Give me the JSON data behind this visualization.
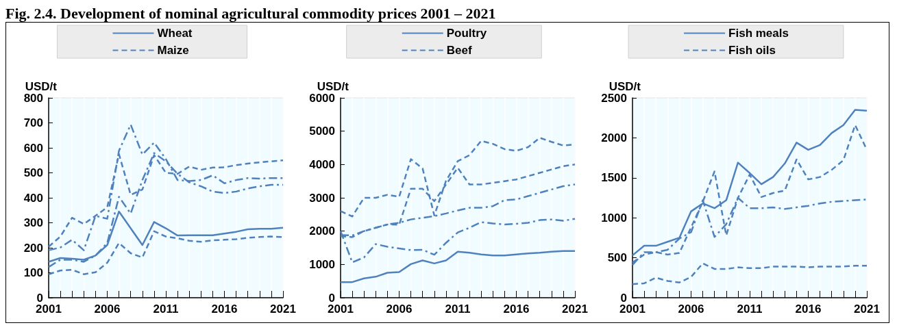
{
  "chart_data": [
    {
      "type": "line",
      "title": "Fig. 2.4. Development of nominal agricultural commodity prices 2001 – 2021",
      "ylabel": "USD/t",
      "x": [
        2001,
        2002,
        2003,
        2004,
        2005,
        2006,
        2007,
        2008,
        2009,
        2010,
        2011,
        2012,
        2013,
        2014,
        2015,
        2016,
        2017,
        2018,
        2019,
        2020,
        2021
      ],
      "xlim": [
        2001,
        2021
      ],
      "xticks": [
        2001,
        {
          "value": 2002,
          "label": null
        },
        {
          "value": 2003,
          "label": null
        },
        {
          "value": 2004,
          "label": null
        },
        {
          "value": 2005,
          "label": null
        },
        2006,
        {
          "value": 2007,
          "label": null
        },
        {
          "value": 2008,
          "label": null
        },
        {
          "value": 2009,
          "label": null
        },
        {
          "value": 2010,
          "label": null
        },
        2011,
        {
          "value": 2012,
          "label": null
        },
        {
          "value": 2013,
          "label": null
        },
        {
          "value": 2014,
          "label": null
        },
        {
          "value": 2015,
          "label": null
        },
        2016,
        {
          "value": 2017,
          "label": null
        },
        {
          "value": 2018,
          "label": null
        },
        {
          "value": 2019,
          "label": null
        },
        {
          "value": 2020,
          "label": null
        },
        2021
      ],
      "ylim": [
        0,
        800
      ],
      "yticks": [
        0,
        100,
        200,
        300,
        400,
        500,
        600,
        700,
        800
      ],
      "grid": "x",
      "legend": "top",
      "series": [
        {
          "name": "Wheat",
          "color": "#4f81bd",
          "line_style": "solid",
          "values": [
            144,
            159,
            156,
            152,
            169,
            211,
            345,
            278,
            211,
            303,
            278,
            249,
            250,
            250,
            250,
            257,
            264,
            274,
            276,
            276,
            280
          ]
        },
        {
          "name": "Maize",
          "color": "#4f81bd",
          "line_style": "dashed",
          "values": [
            94,
            109,
            112,
            94,
            102,
            140,
            219,
            178,
            161,
            266,
            245,
            238,
            228,
            224,
            230,
            232,
            234,
            240,
            243,
            245,
            243
          ]
        },
        {
          "color": "#4f81bd",
          "line_style": "dashed",
          "values": [
            204,
            245,
            320,
            295,
            328,
            362,
            575,
            412,
            433,
            571,
            500,
            496,
            525,
            512,
            521,
            522,
            531,
            537,
            542,
            546,
            550
          ]
        },
        {
          "color": "#4f81bd",
          "line_style": "dashdot",
          "values": [
            190,
            201,
            232,
            190,
            328,
            316,
            588,
            693,
            573,
            621,
            555,
            471,
            467,
            471,
            490,
            458,
            471,
            479,
            477,
            479,
            479
          ]
        },
        {
          "color": "#4f81bd",
          "line_style": "dashdot",
          "values": [
            123,
            152,
            152,
            144,
            169,
            219,
            404,
            337,
            471,
            579,
            546,
            496,
            462,
            446,
            425,
            419,
            425,
            437,
            446,
            452,
            452
          ]
        }
      ]
    },
    {
      "type": "line",
      "ylabel": "USD/t",
      "x": [
        2001,
        2002,
        2003,
        2004,
        2005,
        2006,
        2007,
        2008,
        2009,
        2010,
        2011,
        2012,
        2013,
        2014,
        2015,
        2016,
        2017,
        2018,
        2019,
        2020,
        2021
      ],
      "xlim": [
        2001,
        2021
      ],
      "xticks": [
        2001,
        {
          "value": 2002,
          "label": null
        },
        {
          "value": 2003,
          "label": null
        },
        {
          "value": 2004,
          "label": null
        },
        {
          "value": 2005,
          "label": null
        },
        2006,
        {
          "value": 2007,
          "label": null
        },
        {
          "value": 2008,
          "label": null
        },
        {
          "value": 2009,
          "label": null
        },
        {
          "value": 2010,
          "label": null
        },
        2011,
        {
          "value": 2012,
          "label": null
        },
        {
          "value": 2013,
          "label": null
        },
        {
          "value": 2014,
          "label": null
        },
        {
          "value": 2015,
          "label": null
        },
        2016,
        {
          "value": 2017,
          "label": null
        },
        {
          "value": 2018,
          "label": null
        },
        {
          "value": 2019,
          "label": null
        },
        {
          "value": 2020,
          "label": null
        },
        2021
      ],
      "ylim": [
        0,
        6000
      ],
      "yticks": [
        0,
        1000,
        2000,
        3000,
        4000,
        5000,
        6000
      ],
      "grid": "x",
      "legend": "top",
      "series": [
        {
          "name": "Poultry",
          "color": "#4f81bd",
          "line_style": "solid",
          "values": [
            470,
            470,
            580,
            630,
            750,
            770,
            1010,
            1120,
            1030,
            1120,
            1380,
            1350,
            1300,
            1270,
            1270,
            1300,
            1330,
            1350,
            1380,
            1400,
            1400
          ]
        },
        {
          "name": "Beef",
          "color": "#4f81bd",
          "line_style": "dashed",
          "values": [
            2600,
            2440,
            3000,
            3000,
            3090,
            3030,
            4160,
            3880,
            2470,
            3510,
            4100,
            4280,
            4710,
            4620,
            4460,
            4410,
            4520,
            4800,
            4680,
            4570,
            4600
          ]
        },
        {
          "color": "#4f81bd",
          "line_style": "dashed",
          "values": [
            1850,
            1820,
            2000,
            2100,
            2200,
            2190,
            3270,
            3270,
            2900,
            3400,
            3900,
            3400,
            3400,
            3450,
            3500,
            3550,
            3650,
            3750,
            3850,
            3950,
            4000
          ]
        },
        {
          "color": "#4f81bd",
          "line_style": "dashdot",
          "values": [
            2000,
            1060,
            1210,
            1610,
            1530,
            1480,
            1430,
            1440,
            1290,
            1650,
            1960,
            2100,
            2270,
            2230,
            2200,
            2220,
            2250,
            2330,
            2350,
            2310,
            2370
          ]
        },
        {
          "color": "#4f81bd",
          "line_style": "dashdot",
          "values": [
            1880,
            1870,
            2000,
            2100,
            2200,
            2250,
            2350,
            2400,
            2450,
            2530,
            2620,
            2700,
            2700,
            2750,
            2930,
            2950,
            3050,
            3150,
            3250,
            3350,
            3400
          ]
        }
      ]
    },
    {
      "type": "line",
      "ylabel": "USD/t",
      "x": [
        2001,
        2002,
        2003,
        2004,
        2005,
        2006,
        2007,
        2008,
        2009,
        2010,
        2011,
        2012,
        2013,
        2014,
        2015,
        2016,
        2017,
        2018,
        2019,
        2020,
        2021
      ],
      "xlim": [
        2001,
        2021
      ],
      "xticks": [
        2001,
        {
          "value": 2002,
          "label": null
        },
        {
          "value": 2003,
          "label": null
        },
        {
          "value": 2004,
          "label": null
        },
        {
          "value": 2005,
          "label": null
        },
        2006,
        {
          "value": 2007,
          "label": null
        },
        {
          "value": 2008,
          "label": null
        },
        {
          "value": 2009,
          "label": null
        },
        {
          "value": 2010,
          "label": null
        },
        2011,
        {
          "value": 2012,
          "label": null
        },
        {
          "value": 2013,
          "label": null
        },
        {
          "value": 2014,
          "label": null
        },
        {
          "value": 2015,
          "label": null
        },
        2016,
        {
          "value": 2017,
          "label": null
        },
        {
          "value": 2018,
          "label": null
        },
        {
          "value": 2019,
          "label": null
        },
        {
          "value": 2020,
          "label": null
        },
        2021
      ],
      "ylim": [
        0,
        2500
      ],
      "yticks": [
        0,
        500,
        1000,
        1500,
        2000,
        2500
      ],
      "grid": "x",
      "legend": "top",
      "series": [
        {
          "name": "Fish meals",
          "color": "#4f81bd",
          "line_style": "solid",
          "values": [
            530,
            650,
            650,
            700,
            750,
            1080,
            1180,
            1120,
            1220,
            1690,
            1560,
            1420,
            1510,
            1680,
            1940,
            1850,
            1910,
            2060,
            2160,
            2350,
            2340
          ]
        },
        {
          "name": "Fish oils",
          "color": "#4f81bd",
          "line_style": "dashed",
          "values": [
            170,
            180,
            250,
            210,
            190,
            260,
            430,
            360,
            360,
            380,
            370,
            370,
            390,
            390,
            390,
            380,
            390,
            390,
            390,
            400,
            400
          ]
        },
        {
          "color": "#4f81bd",
          "line_style": "dashed",
          "values": [
            440,
            540,
            570,
            540,
            560,
            880,
            1200,
            1580,
            780,
            1250,
            1540,
            1260,
            1310,
            1340,
            1730,
            1480,
            1510,
            1600,
            1720,
            2160,
            1850
          ]
        },
        {
          "color": "#4f81bd",
          "line_style": "dashdot",
          "values": [
            410,
            570,
            570,
            600,
            740,
            820,
            1220,
            760,
            920,
            1250,
            1120,
            1120,
            1130,
            1110,
            1130,
            1150,
            1180,
            1200,
            1210,
            1220,
            1230
          ]
        }
      ]
    }
  ]
}
